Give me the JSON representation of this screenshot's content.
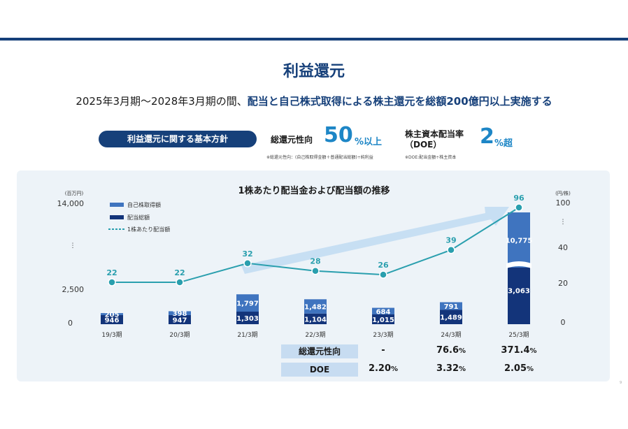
{
  "title": "利益還元",
  "subtitle": {
    "part1": "2025年3月期～2028年3月期の間、",
    "part2": "配当と自己株式取得による株主還元を総額200億円以上実施する"
  },
  "policy": {
    "pill": "利益還元に関する基本方針",
    "metric1": {
      "label": "総還元性向",
      "value": "50",
      "unit": "%以上",
      "note": "※総還元性向：(自己株取得金額＋普通配当総額)÷純利益"
    },
    "metric2": {
      "label_line1": "株主資本配当率",
      "label_line2": "（DOE）",
      "value": "2",
      "unit": "%超",
      "note": "※DOE:配当金額÷株主資本"
    }
  },
  "colors": {
    "navy": "#16407a",
    "buyback": "#3f74bf",
    "dividend": "#13347a",
    "line": "#2a9fae",
    "accent": "#1d86c6"
  },
  "chart_data": {
    "type": "bar",
    "title": "1株あたり配当金および配当額の推移",
    "categories": [
      "19/3期",
      "20/3期",
      "21/3期",
      "22/3期",
      "23/3期",
      "24/3期",
      "25/3期"
    ],
    "series": [
      {
        "name": "自己株取得額",
        "values": [
          205,
          398,
          1797,
          1482,
          684,
          791,
          10775
        ]
      },
      {
        "name": "配当総額",
        "values": [
          946,
          947,
          1303,
          1104,
          1015,
          1489,
          3063
        ]
      },
      {
        "name": "1株あたり配当額",
        "values": [
          22,
          22,
          32,
          28,
          26,
          39,
          96
        ]
      }
    ],
    "y_left": {
      "unit": "(百万円)",
      "ticks": [
        "14,000",
        "2,500",
        "0"
      ],
      "axis_break": true
    },
    "y_right": {
      "unit": "(円/株)",
      "ticks": [
        "100",
        "40",
        "20",
        "0"
      ],
      "axis_break": true
    },
    "axis_break_marks": [
      "⋮",
      "⋮"
    ],
    "table": {
      "rows": [
        {
          "label": "総還元性向",
          "values": [
            "-",
            "76.6",
            "371.4"
          ],
          "suffix": [
            "",
            "%",
            "%"
          ]
        },
        {
          "label": "DOE",
          "values": [
            "2.20",
            "3.32",
            "2.05"
          ],
          "suffix": [
            "%",
            "%",
            "%"
          ]
        }
      ]
    }
  },
  "page_number": "9"
}
